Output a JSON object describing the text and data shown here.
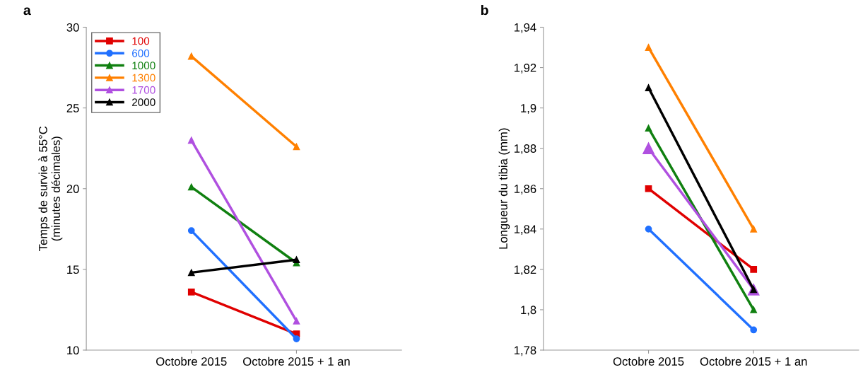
{
  "chart_data": [
    {
      "type": "line",
      "title": "a",
      "ylabel": "Temps de survie à 55°C\n(minutes décimales)",
      "categories": [
        "Octobre 2015",
        "Octobre 2015 + 1 an"
      ],
      "ylim": [
        10,
        30
      ],
      "yticks": [
        10,
        15,
        20,
        25,
        30
      ],
      "grid": false,
      "legend": "top left",
      "series": [
        {
          "name": "100",
          "color": "#e00000",
          "marker": "square",
          "values": [
            13.6,
            11.0
          ]
        },
        {
          "name": "600",
          "color": "#2070ff",
          "marker": "circle",
          "values": [
            17.4,
            10.7
          ]
        },
        {
          "name": "1000",
          "color": "#108010",
          "marker": "triangle",
          "values": [
            20.1,
            15.4
          ]
        },
        {
          "name": "1300",
          "color": "#ff8000",
          "marker": "triangle",
          "values": [
            28.2,
            22.6
          ]
        },
        {
          "name": "1700",
          "color": "#b050e0",
          "marker": "triangle",
          "values": [
            23.0,
            11.8
          ]
        },
        {
          "name": "2000",
          "color": "#000000",
          "marker": "triangle",
          "values": [
            14.8,
            15.6
          ]
        }
      ]
    },
    {
      "type": "line",
      "title": "b",
      "ylabel": "Longueur du tibia (mm)",
      "categories": [
        "Octobre 2015",
        "Octobre 2015 + 1 an"
      ],
      "ylim": [
        1.78,
        1.94
      ],
      "yticks": [
        {
          "value": 1.78,
          "label": "1,78"
        },
        {
          "value": 1.8,
          "label": "1,8"
        },
        {
          "value": 1.82,
          "label": "1,82"
        },
        {
          "value": 1.84,
          "label": "1,84"
        },
        {
          "value": 1.86,
          "label": "1,86"
        },
        {
          "value": 1.88,
          "label": "1,88"
        },
        {
          "value": 1.9,
          "label": "1,9"
        },
        {
          "value": 1.92,
          "label": "1,92"
        },
        {
          "value": 1.94,
          "label": "1,94"
        }
      ],
      "grid": false,
      "series": [
        {
          "color": "#e00000",
          "marker": "square",
          "values": [
            1.86,
            1.82
          ]
        },
        {
          "color": "#2070ff",
          "marker": "circle",
          "values": [
            1.84,
            1.79
          ]
        },
        {
          "color": "#108010",
          "marker": "triangle",
          "values": [
            1.89,
            1.8
          ]
        },
        {
          "color": "#ff8000",
          "marker": "triangle",
          "values": [
            1.93,
            1.84
          ]
        },
        {
          "color": "#b050e0",
          "marker": "triangle",
          "values": [
            1.88,
            1.81
          ]
        },
        {
          "color": "#000000",
          "marker": "triangle",
          "values": [
            1.91,
            1.81
          ]
        }
      ]
    }
  ]
}
